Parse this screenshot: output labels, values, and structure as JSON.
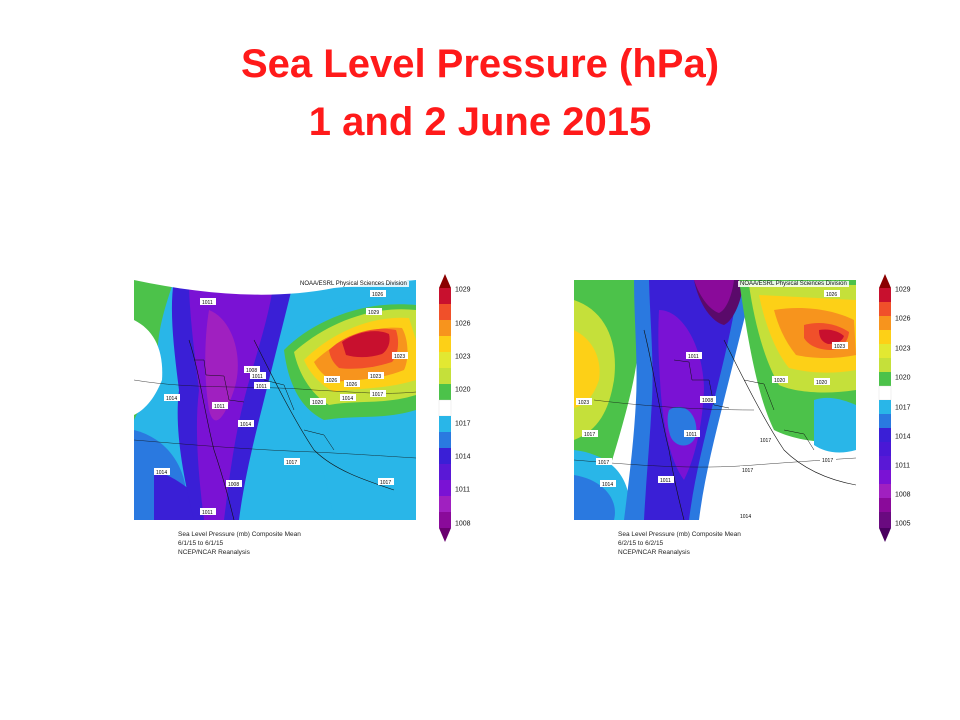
{
  "title": {
    "line1": "Sea Level Pressure (hPa)",
    "line2": "1 and 2 June 2015"
  },
  "panels": [
    {
      "header": "NOAA/ESRL Physical Sciences Division",
      "caption": [
        "Sea Level Pressure (mb) Composite Mean",
        "6/1/15   to 6/1/15",
        "NCEP/NCAR Reanalysis"
      ],
      "colorbar": [
        "1029",
        "1026",
        "1023",
        "1020",
        "1017",
        "1014",
        "1011",
        "1008"
      ],
      "labels": [
        "1011",
        "1026",
        "1029",
        "1023",
        "1026",
        "1008",
        "1011",
        "1020",
        "1011",
        "1014",
        "1014",
        "1023",
        "1026",
        "1008",
        "1017",
        "1017",
        "1014",
        "1011",
        "1017",
        "1011",
        "1014"
      ]
    },
    {
      "header": "NOAA/ESRL Physical Sciences Division",
      "caption": [
        "Sea Level Pressure (mb) Composite Mean",
        "6/2/15   to 6/2/15",
        "NCEP/NCAR Reanalysis"
      ],
      "colorbar": [
        "1029",
        "1026",
        "1023",
        "1020",
        "1017",
        "1014",
        "1011",
        "1008",
        "1005"
      ],
      "labels": [
        "1023",
        "1026",
        "1011",
        "1008",
        "1011",
        "1023",
        "1020",
        "1020",
        "1017",
        "1017",
        "1017",
        "1017",
        "1017",
        "1014",
        "1011",
        "1014"
      ]
    }
  ],
  "colors": {
    "title": "#ff1a1a",
    "scale": [
      "#8b0000",
      "#c8102e",
      "#f0502a",
      "#f7941d",
      "#fdd017",
      "#c5e03a",
      "#4cc24a",
      "#ffffff",
      "#29b6e8",
      "#2a79e0",
      "#3a1fd6",
      "#7a12d4",
      "#a020c0",
      "#8a0a9a"
    ]
  }
}
